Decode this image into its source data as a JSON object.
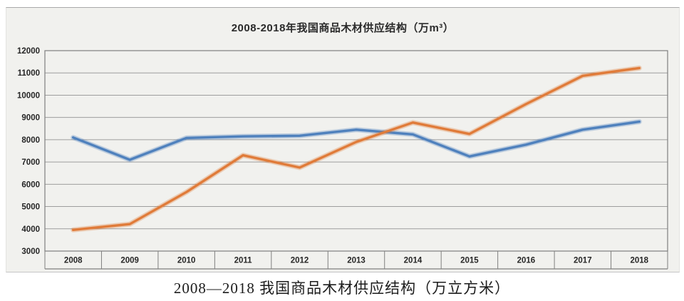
{
  "page": {
    "title": "2008-2018年我国商品木材供应结构（万m³）",
    "caption": "2008—2018 我国商品木材供应结构（万立方米）"
  },
  "colors": {
    "chart_background": "#f1f1ee",
    "plot_frame": "#7f7f7f",
    "gridline": "#9d9d9d",
    "axis_label": "#262626",
    "blue_series": "#4f81bd",
    "orange_series": "#e07b39"
  },
  "chart_data": {
    "type": "line",
    "title": "2008-2018年我国商品木材供应结构（万m³）",
    "categories": [
      "2008",
      "2009",
      "2010",
      "2011",
      "2012",
      "2013",
      "2014",
      "2015",
      "2016",
      "2017",
      "2018"
    ],
    "series": [
      {
        "name": "blue",
        "color": "#4f81bd",
        "values": [
          8100,
          7100,
          8080,
          8150,
          8180,
          8450,
          8240,
          7250,
          7780,
          8450,
          8810
        ]
      },
      {
        "name": "orange",
        "color": "#e07b39",
        "values": [
          3950,
          4210,
          5650,
          7300,
          6750,
          7900,
          8770,
          8260,
          9600,
          10870,
          11220
        ]
      }
    ],
    "xlabel": "",
    "ylabel": "",
    "ylim": [
      3000,
      12000
    ],
    "ytick_step": 1000,
    "ytick_labels": [
      "3000",
      "4000",
      "5000",
      "6000",
      "7000",
      "8000",
      "9000",
      "10000",
      "11000",
      "12000"
    ],
    "grid": true,
    "legend": "none"
  }
}
